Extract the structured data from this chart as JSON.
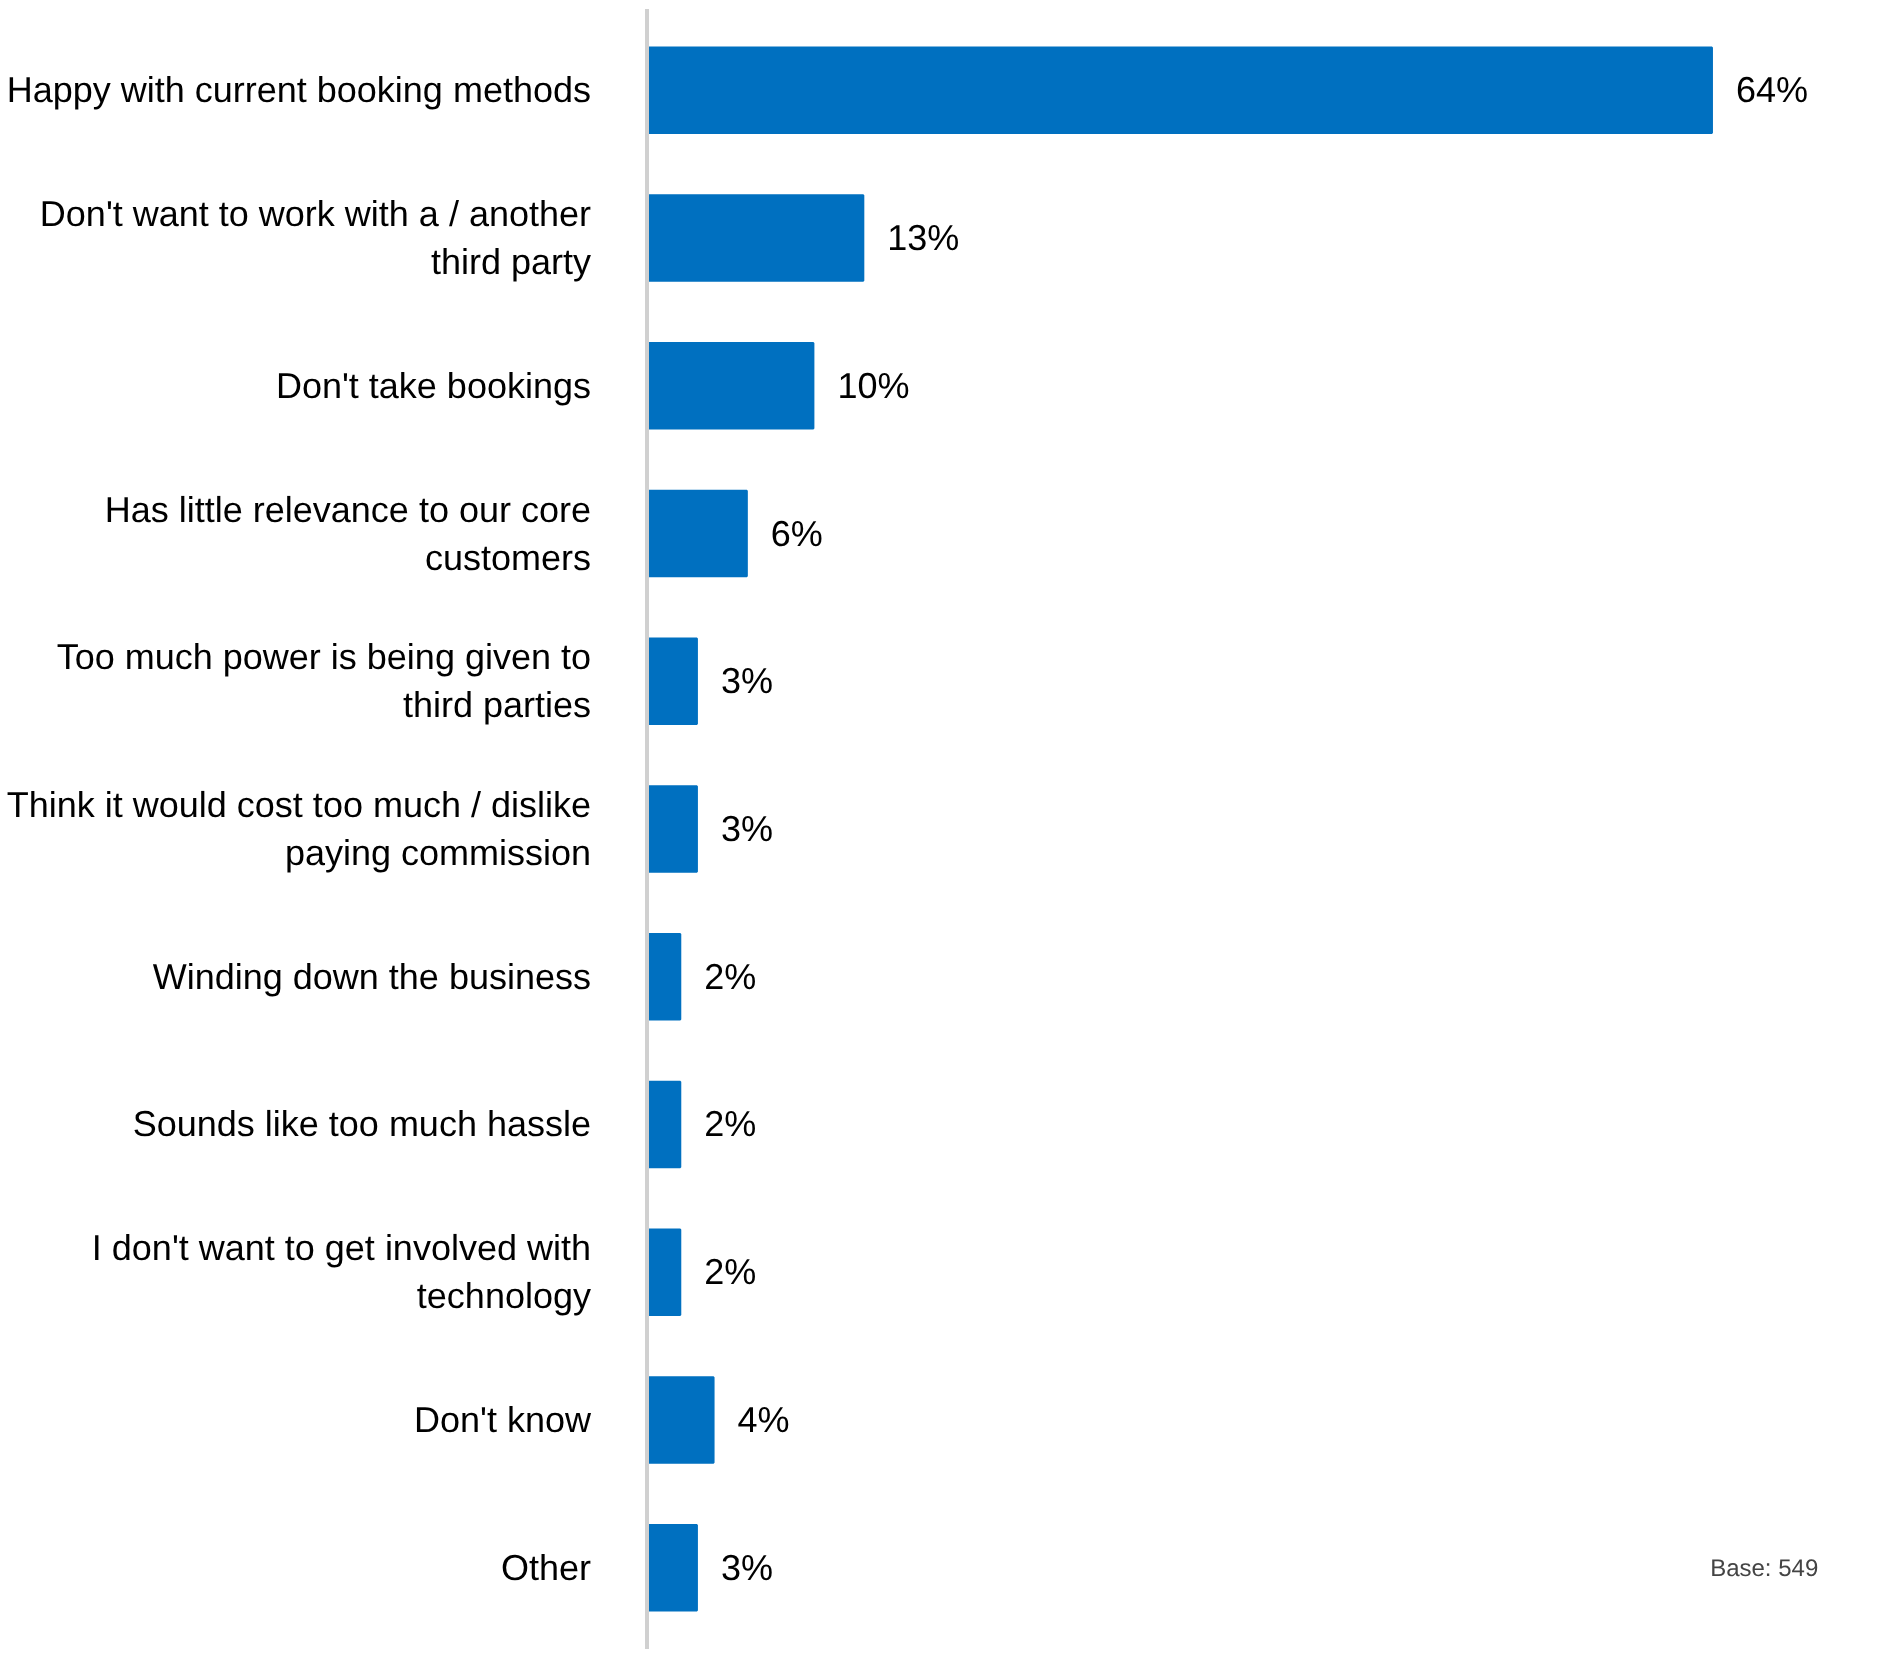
{
  "chart_data": {
    "type": "bar",
    "orientation": "horizontal",
    "color": "#0070c0",
    "grid": false,
    "value_labels": [
      "64%",
      "13%",
      "10%",
      "6%",
      "3%",
      "3%",
      "2%",
      "2%",
      "2%",
      "4%",
      "3%"
    ],
    "categories": [
      "Happy with current booking methods",
      "Don't want to work with a / another\nthird party",
      "Don't take bookings",
      "Has little relevance to our core\ncustomers",
      "Too much power is being given to\nthird parties",
      "Think it would cost too much / dislike\npaying commission",
      "Winding down the business",
      "Sounds like too much hassle",
      "I don't want to get involved with\ntechnology",
      "Don't know",
      "Other"
    ],
    "values": [
      64,
      13,
      10,
      6,
      3,
      3,
      2,
      2,
      2,
      4,
      3
    ],
    "annotations": [
      "Base: 549"
    ]
  }
}
